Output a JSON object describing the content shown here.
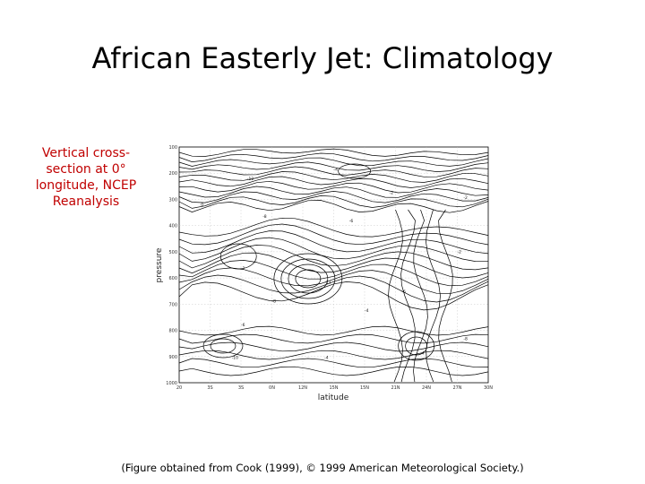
{
  "slide": {
    "title": "African Easterly Jet: Climatology",
    "caption": "Vertical cross-section at 0° longitude, NCEP Reanalysis",
    "footer": "(Figure obtained from Cook (1999), © 1999 American Meteorological Society.)"
  },
  "figure": {
    "xlabel": "latitude",
    "ylabel": "pressure",
    "x_ticks": [
      "20",
      "3S",
      "3S",
      "0N",
      "12N",
      "15N",
      "15N",
      "21N",
      "24N",
      "27N",
      "30N"
    ],
    "y_ticks": [
      "100",
      "200",
      "300",
      "400",
      "500",
      "600",
      "700",
      "800",
      "900",
      "1000"
    ],
    "contour_labels": [
      "-12",
      "-4",
      "-8",
      "-6",
      "-2",
      "0",
      "-12",
      "-8",
      "-6",
      "-4",
      "-2",
      "-6",
      "-10",
      "-4",
      "-4",
      "-2",
      "-2",
      "-8"
    ]
  }
}
